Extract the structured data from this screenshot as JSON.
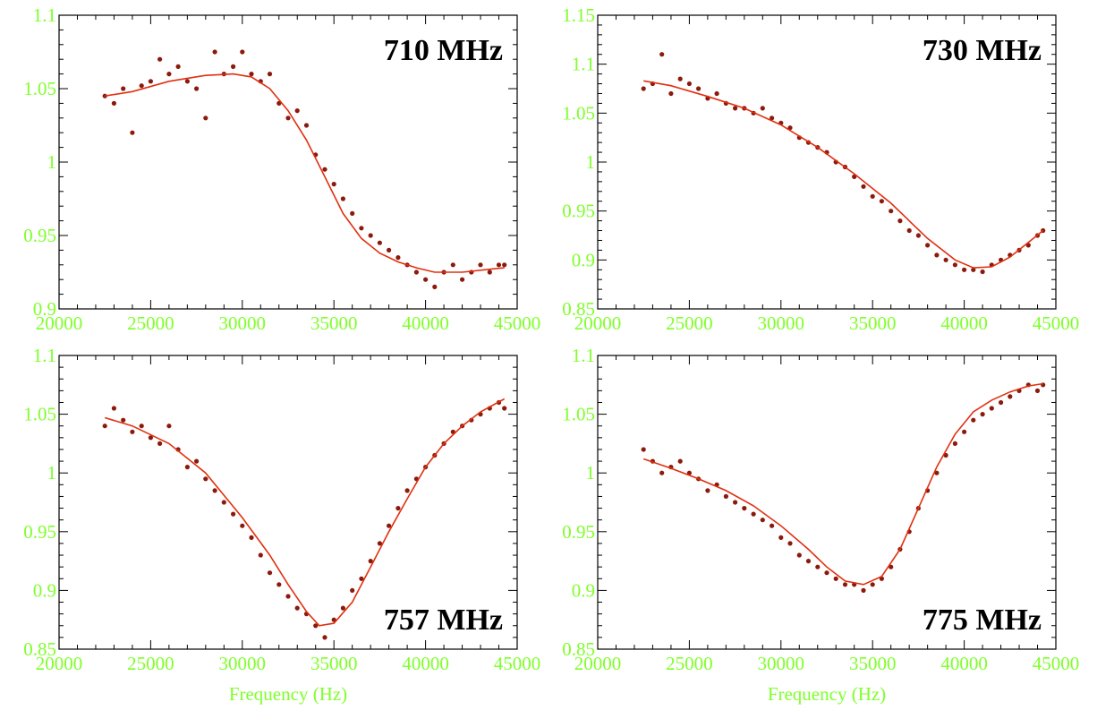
{
  "colors": {
    "axis_text": "#7fff2a",
    "points": "#8b1a0c",
    "fit": "#e03010",
    "frame": "#000000"
  },
  "chart_data": [
    {
      "type": "scatter",
      "title": "710 MHz",
      "xlabel": "",
      "ylabel": "",
      "xlim": [
        20000,
        45000
      ],
      "ylim": [
        0.9,
        1.1
      ],
      "xticks": [
        "20000",
        "25000",
        "30000",
        "35000",
        "40000",
        "45000"
      ],
      "yticks": [
        "0.9",
        "0.95",
        "1",
        "1.05",
        "1.1"
      ],
      "label_position": "top-right",
      "series": [
        {
          "kind": "points",
          "x": [
            22500,
            23000,
            23500,
            24000,
            24500,
            25000,
            25500,
            26000,
            26500,
            27000,
            27500,
            28000,
            28500,
            29000,
            29500,
            30000,
            30500,
            31000,
            31500,
            32000,
            32500,
            33000,
            33500,
            34000,
            34500,
            35000,
            35500,
            36000,
            36500,
            37000,
            37500,
            38000,
            38500,
            39000,
            39500,
            40000,
            40500,
            41000,
            41500,
            42000,
            42500,
            43000,
            43500,
            44000,
            44300
          ],
          "y": [
            1.045,
            1.04,
            1.05,
            1.02,
            1.052,
            1.055,
            1.07,
            1.06,
            1.065,
            1.055,
            1.05,
            1.03,
            1.075,
            1.06,
            1.065,
            1.075,
            1.06,
            1.055,
            1.06,
            1.04,
            1.03,
            1.035,
            1.025,
            1.005,
            0.995,
            0.985,
            0.975,
            0.965,
            0.955,
            0.95,
            0.945,
            0.94,
            0.935,
            0.93,
            0.925,
            0.92,
            0.915,
            0.925,
            0.93,
            0.92,
            0.925,
            0.93,
            0.925,
            0.93,
            0.93
          ]
        },
        {
          "kind": "fit",
          "x": [
            22500,
            24000,
            26000,
            28000,
            29500,
            30500,
            31500,
            32500,
            33500,
            34500,
            35500,
            36500,
            37500,
            38500,
            39500,
            40500,
            42000,
            43500,
            44300
          ],
          "y": [
            1.045,
            1.048,
            1.055,
            1.059,
            1.06,
            1.058,
            1.05,
            1.035,
            1.015,
            0.99,
            0.965,
            0.948,
            0.938,
            0.932,
            0.928,
            0.925,
            0.925,
            0.927,
            0.928
          ]
        }
      ]
    },
    {
      "type": "scatter",
      "title": "730 MHz",
      "xlabel": "",
      "ylabel": "",
      "xlim": [
        20000,
        45000
      ],
      "ylim": [
        0.85,
        1.15
      ],
      "xticks": [
        "20000",
        "25000",
        "30000",
        "35000",
        "40000",
        "45000"
      ],
      "yticks": [
        "0.85",
        "0.9",
        "0.95",
        "1",
        "1.05",
        "1.1",
        "1.15"
      ],
      "label_position": "top-right",
      "series": [
        {
          "kind": "points",
          "x": [
            22500,
            23000,
            23500,
            24000,
            24500,
            25000,
            25500,
            26000,
            26500,
            27000,
            27500,
            28000,
            28500,
            29000,
            29500,
            30000,
            30500,
            31000,
            31500,
            32000,
            32500,
            33000,
            33500,
            34000,
            34500,
            35000,
            35500,
            36000,
            36500,
            37000,
            37500,
            38000,
            38500,
            39000,
            39500,
            40000,
            40500,
            41000,
            41500,
            42000,
            42500,
            43000,
            43500,
            44000,
            44300
          ],
          "y": [
            1.075,
            1.08,
            1.11,
            1.07,
            1.085,
            1.08,
            1.075,
            1.065,
            1.07,
            1.06,
            1.055,
            1.055,
            1.05,
            1.055,
            1.045,
            1.04,
            1.035,
            1.025,
            1.02,
            1.015,
            1.01,
            1.0,
            0.995,
            0.985,
            0.975,
            0.965,
            0.96,
            0.95,
            0.94,
            0.93,
            0.925,
            0.915,
            0.905,
            0.9,
            0.895,
            0.89,
            0.89,
            0.888,
            0.895,
            0.9,
            0.905,
            0.91,
            0.915,
            0.925,
            0.93
          ]
        },
        {
          "kind": "fit",
          "x": [
            22500,
            24000,
            26000,
            28000,
            30000,
            32000,
            34000,
            36000,
            38000,
            39500,
            40500,
            41500,
            42500,
            43500,
            44300
          ],
          "y": [
            1.083,
            1.078,
            1.067,
            1.055,
            1.038,
            1.015,
            0.988,
            0.958,
            0.922,
            0.9,
            0.892,
            0.893,
            0.903,
            0.918,
            0.93
          ]
        }
      ]
    },
    {
      "type": "scatter",
      "title": "757 MHz",
      "xlabel": "Frequency (Hz)",
      "ylabel": "",
      "xlim": [
        20000,
        45000
      ],
      "ylim": [
        0.85,
        1.1
      ],
      "xticks": [
        "20000",
        "25000",
        "30000",
        "35000",
        "40000",
        "45000"
      ],
      "yticks": [
        "0.85",
        "0.9",
        "0.95",
        "1",
        "1.05",
        "1.1"
      ],
      "label_position": "bottom-right",
      "series": [
        {
          "kind": "points",
          "x": [
            22500,
            23000,
            23500,
            24000,
            24500,
            25000,
            25500,
            26000,
            26500,
            27000,
            27500,
            28000,
            28500,
            29000,
            29500,
            30000,
            30500,
            31000,
            31500,
            32000,
            32500,
            33000,
            33500,
            34000,
            34500,
            35000,
            35500,
            36000,
            36500,
            37000,
            37500,
            38000,
            38500,
            39000,
            39500,
            40000,
            40500,
            41000,
            41500,
            42000,
            42500,
            43000,
            43500,
            44000,
            44300
          ],
          "y": [
            1.04,
            1.055,
            1.045,
            1.035,
            1.04,
            1.03,
            1.025,
            1.04,
            1.02,
            1.005,
            1.01,
            0.995,
            0.985,
            0.975,
            0.965,
            0.955,
            0.945,
            0.93,
            0.915,
            0.905,
            0.895,
            0.885,
            0.88,
            0.87,
            0.86,
            0.875,
            0.885,
            0.9,
            0.91,
            0.925,
            0.94,
            0.955,
            0.97,
            0.985,
            0.995,
            1.005,
            1.015,
            1.025,
            1.035,
            1.04,
            1.045,
            1.05,
            1.055,
            1.06,
            1.055
          ]
        },
        {
          "kind": "fit",
          "x": [
            22500,
            24000,
            26000,
            28000,
            30000,
            31500,
            32500,
            33500,
            34200,
            35000,
            36000,
            37000,
            38000,
            39000,
            40000,
            41000,
            42000,
            43000,
            44300
          ],
          "y": [
            1.047,
            1.04,
            1.025,
            1.0,
            0.962,
            0.93,
            0.905,
            0.882,
            0.87,
            0.872,
            0.89,
            0.92,
            0.95,
            0.978,
            1.005,
            1.025,
            1.04,
            1.052,
            1.063
          ]
        }
      ]
    },
    {
      "type": "scatter",
      "title": "775 MHz",
      "xlabel": "Frequency (Hz)",
      "ylabel": "",
      "xlim": [
        20000,
        45000
      ],
      "ylim": [
        0.85,
        1.1
      ],
      "xticks": [
        "20000",
        "25000",
        "30000",
        "35000",
        "40000",
        "45000"
      ],
      "yticks": [
        "0.85",
        "0.9",
        "0.95",
        "1",
        "1.05",
        "1.1"
      ],
      "label_position": "bottom-right",
      "series": [
        {
          "kind": "points",
          "x": [
            22500,
            23000,
            23500,
            24000,
            24500,
            25000,
            25500,
            26000,
            26500,
            27000,
            27500,
            28000,
            28500,
            29000,
            29500,
            30000,
            30500,
            31000,
            31500,
            32000,
            32500,
            33000,
            33500,
            34000,
            34500,
            35000,
            35500,
            36000,
            36500,
            37000,
            37500,
            38000,
            38500,
            39000,
            39500,
            40000,
            40500,
            41000,
            41500,
            42000,
            42500,
            43000,
            43500,
            44000,
            44300
          ],
          "y": [
            1.02,
            1.01,
            1.0,
            1.005,
            1.01,
            1.0,
            0.995,
            0.985,
            0.99,
            0.98,
            0.975,
            0.97,
            0.965,
            0.96,
            0.955,
            0.945,
            0.94,
            0.93,
            0.925,
            0.92,
            0.915,
            0.91,
            0.905,
            0.905,
            0.9,
            0.905,
            0.91,
            0.92,
            0.935,
            0.95,
            0.97,
            0.985,
            1.0,
            1.015,
            1.025,
            1.035,
            1.045,
            1.05,
            1.055,
            1.06,
            1.065,
            1.07,
            1.075,
            1.07,
            1.075
          ]
        },
        {
          "kind": "fit",
          "x": [
            22500,
            24000,
            25500,
            27000,
            28500,
            30000,
            31500,
            32500,
            33500,
            34500,
            35500,
            36500,
            37500,
            38500,
            39500,
            40500,
            41500,
            42500,
            43500,
            44300
          ],
          "y": [
            1.012,
            1.004,
            0.995,
            0.985,
            0.972,
            0.955,
            0.935,
            0.92,
            0.908,
            0.905,
            0.912,
            0.935,
            0.97,
            1.005,
            1.033,
            1.052,
            1.062,
            1.069,
            1.074,
            1.076
          ]
        }
      ]
    }
  ]
}
